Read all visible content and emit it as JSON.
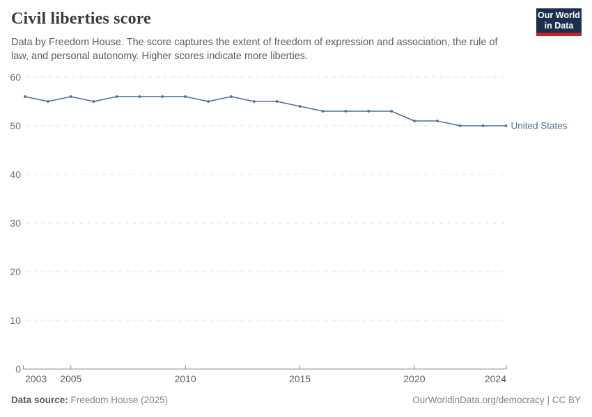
{
  "header": {
    "title": "Civil liberties score",
    "logo": {
      "line1": "Our World",
      "line2": "in Data",
      "bg_color": "#1b2e4d",
      "bar_color": "#c0232c"
    }
  },
  "subtitle": "Data by Freedom House. The score captures the extent of freedom of expression and association, the rule of law, and personal autonomy. Higher scores indicate more liberties.",
  "chart_data": {
    "type": "line",
    "title": "Civil liberties score",
    "x": [
      2003,
      2004,
      2005,
      2006,
      2007,
      2008,
      2009,
      2010,
      2011,
      2012,
      2013,
      2014,
      2015,
      2016,
      2017,
      2018,
      2019,
      2020,
      2021,
      2022,
      2023,
      2024
    ],
    "series": [
      {
        "name": "United States",
        "color": "#4c6a9c",
        "values": [
          56,
          55,
          56,
          55,
          56,
          56,
          56,
          56,
          55,
          56,
          55,
          55,
          54,
          53,
          53,
          53,
          53,
          51,
          51,
          50,
          50,
          50
        ]
      }
    ],
    "ylim": [
      0,
      60
    ],
    "yticks": [
      0,
      10,
      20,
      30,
      40,
      50,
      60
    ],
    "xticks": [
      2003,
      2005,
      2010,
      2015,
      2020,
      2024
    ],
    "xlabel": "",
    "ylabel": "",
    "grid": "horizontal-dashed",
    "legend_position": "end-of-line",
    "gridline_color": "#dcdcdc",
    "axis_color": "#8c8c8c"
  },
  "footer": {
    "source_label": "Data source:",
    "source_value": " Freedom House (2025)",
    "credit": "OurWorldinData.org/democracy | CC BY"
  }
}
